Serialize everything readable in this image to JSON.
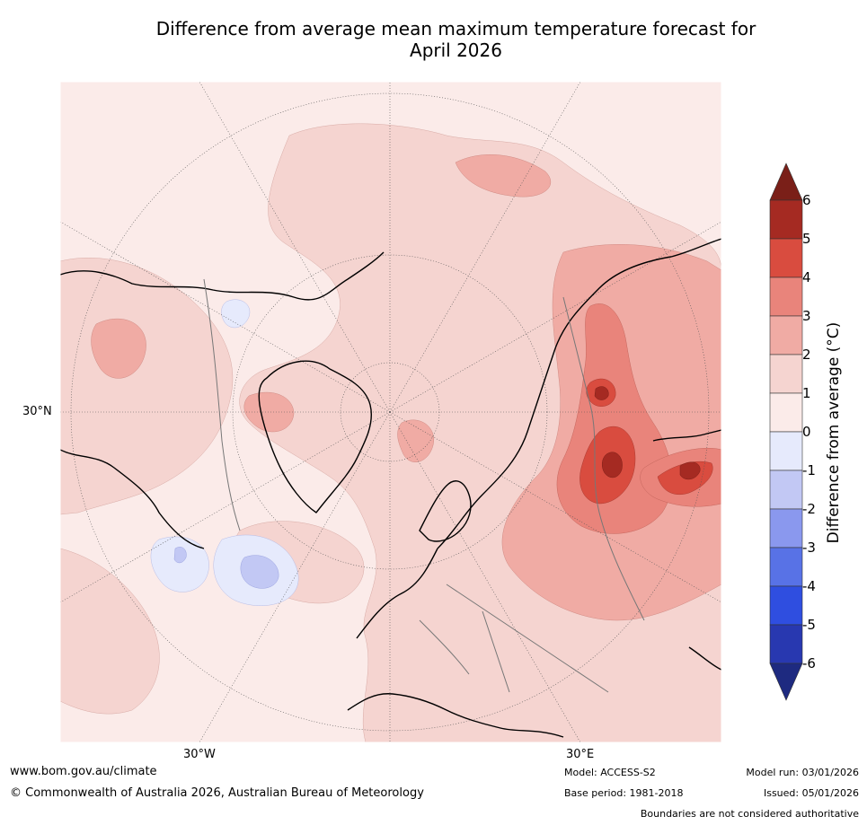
{
  "title_line1": "Difference from average mean maximum temperature forecast for",
  "title_line2": "April 2026",
  "map": {
    "lat_label_left": "30°N",
    "lon_label_left": "30°W",
    "lon_label_right": "30°E"
  },
  "colorbar": {
    "label": "Difference from average (°C)",
    "ticks": [
      "6",
      "5",
      "4",
      "3",
      "2",
      "1",
      "0",
      "-1",
      "-2",
      "-3",
      "-4",
      "-5",
      "-6"
    ],
    "colors": {
      "over": "#7a1f18",
      "c5_6": "#a52a22",
      "c4_5": "#d94c3f",
      "c3_4": "#e9847b",
      "c2_3": "#f0aba4",
      "c1_2": "#f5d4d0",
      "c0_1": "#fbebe9",
      "cm1_0": "#e6eafc",
      "cm2_m1": "#c2c8f4",
      "cm3_m2": "#8a98ee",
      "cm4_m3": "#5872e6",
      "cm5_m4": "#2f4ee0",
      "cm6_m5": "#2838b0",
      "under": "#1e2a80"
    }
  },
  "footer": {
    "website": "www.bom.gov.au/climate",
    "copyright": "© Commonwealth of Australia 2026, Australian Bureau of Meteorology",
    "model": "Model: ACCESS-S2",
    "base_period": "Base period: 1981-2018",
    "model_run": "Model run: 03/01/2026",
    "issued": "Issued: 05/01/2026",
    "disclaimer": "Boundaries are not considered authoritative"
  }
}
